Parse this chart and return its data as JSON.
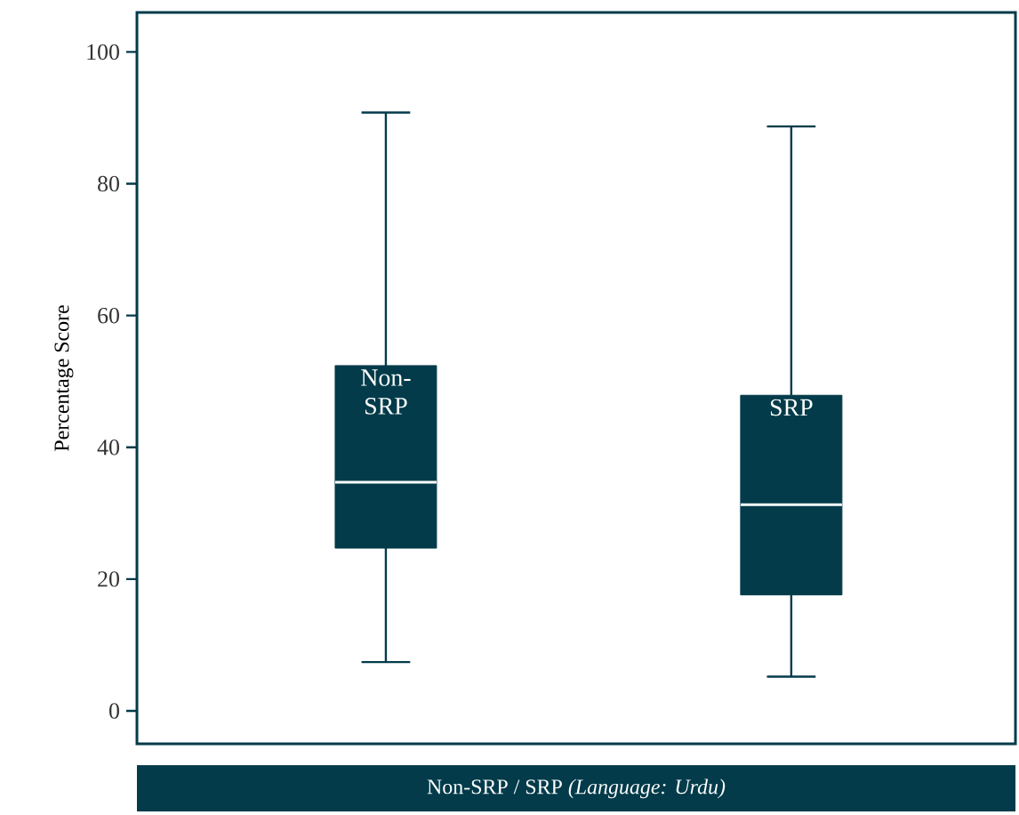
{
  "chart_data": {
    "type": "box",
    "xlabel": "Non-SRP / SRP *(Language: Urdu)*",
    "ylabel": "Percentage Score",
    "categories": [
      "Non-SRP",
      "SRP"
    ],
    "series": [
      {
        "color": "#033b4a",
        "boxes": [
          {
            "low": 7.4,
            "q1": 24.7,
            "median": 34.7,
            "q3": 52.4,
            "high": 90.8
          },
          {
            "low": 5.2,
            "q1": 17.6,
            "median": 31.3,
            "q3": 47.9,
            "high": 88.7
          }
        ]
      }
    ],
    "ylim": [
      -5,
      106
    ],
    "yticks": [
      0,
      20,
      40,
      60,
      80,
      100
    ]
  }
}
